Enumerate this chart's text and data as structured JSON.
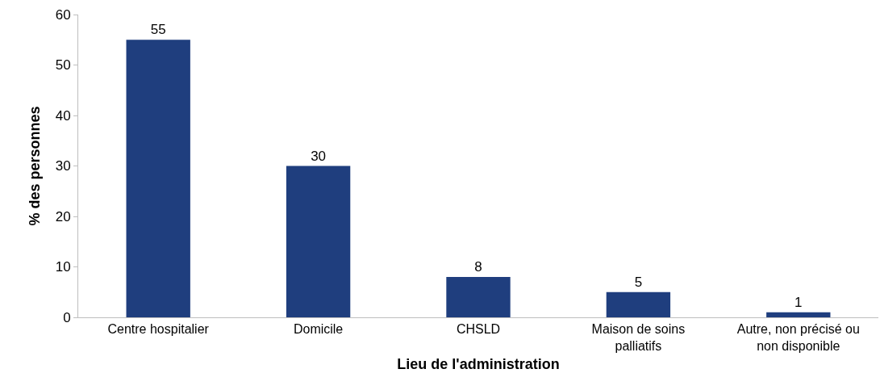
{
  "chart_data": {
    "type": "bar",
    "xlabel": "Lieu de l'administration",
    "ylabel": "% des personnes",
    "categories": [
      "Centre hospitalier",
      "Domicile",
      "CHSLD",
      "Maison de soins\npalliatifs",
      "Autre, non précisé ou\nnon disponible"
    ],
    "values": [
      55,
      30,
      8,
      5,
      1
    ],
    "color": "#1f3e7e",
    "ylim": [
      0,
      60
    ],
    "yticks": [
      0,
      10,
      20,
      30,
      40,
      50,
      60
    ],
    "grid": false,
    "data_labels": true
  }
}
